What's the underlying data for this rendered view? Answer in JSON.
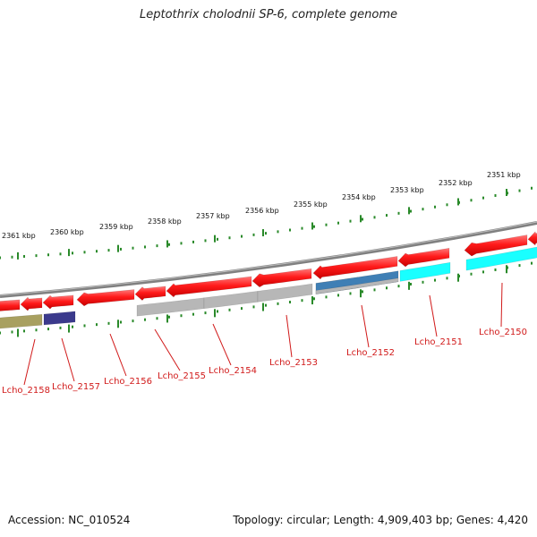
{
  "title": "Leptothrix cholodnii SP-6, complete genome",
  "footer": {
    "accession": "Accession: NC_010524",
    "summary": "Topology: circular; Length: 4,909,403 bp; Genes: 4,420"
  },
  "scale": {
    "kbp_labels": [
      "2361 kbp",
      "2360 kbp",
      "2359 kbp",
      "2358 kbp",
      "2357 kbp",
      "2356 kbp",
      "2355 kbp",
      "2354 kbp",
      "2353 kbp",
      "2352 kbp",
      "2351 kbp"
    ],
    "tick_color": "#2a8a2a"
  },
  "backbone": {
    "color": "#808080"
  },
  "features": {
    "gene_color": "#ff1a1a",
    "cds_colors": {
      "Lcho_2150": "#19ffff",
      "Lcho_2151": "#19ffff",
      "Lcho_2152": "#3f7fb5",
      "Lcho_2153": "#b7b7b7",
      "Lcho_2154": "#b7b7b7",
      "Lcho_2155": "#b7b7b7",
      "Lcho_2156": "#b7b7b7",
      "Lcho_2157": "#3b3a8c",
      "Lcho_2158": "#a8a060"
    }
  },
  "loci": [
    "Lcho_2158",
    "Lcho_2157",
    "Lcho_2156",
    "Lcho_2155",
    "Lcho_2154",
    "Lcho_2153",
    "Lcho_2152",
    "Lcho_2151",
    "Lcho_2150"
  ],
  "locus_color": "#d11a1a"
}
